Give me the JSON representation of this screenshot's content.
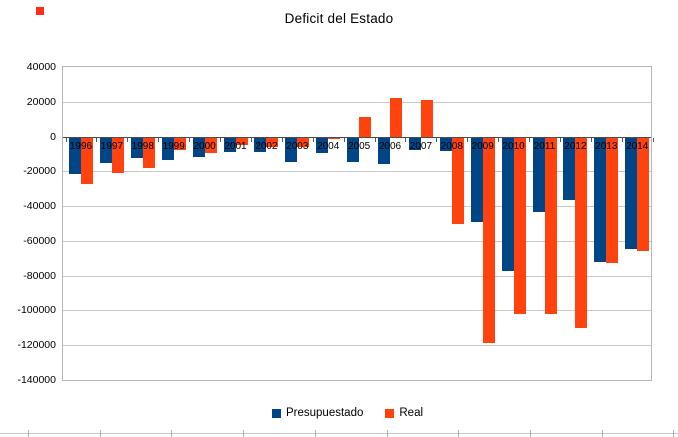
{
  "marker": {
    "color": "#ff2d16"
  },
  "chart_data": {
    "type": "bar",
    "title": "Deficit del Estado",
    "categories": [
      "1996",
      "1997",
      "1998",
      "1999",
      "2000",
      "2001",
      "2002",
      "2003",
      "2004",
      "2005",
      "2006",
      "2007",
      "2008",
      "2009",
      "2010",
      "2011",
      "2012",
      "2013",
      "2014"
    ],
    "series": [
      {
        "name": "Presupuestado",
        "color": "#004586",
        "values": [
          -21000,
          -14500,
          -12000,
          -13000,
          -11000,
          -8500,
          -8500,
          -14000,
          -9000,
          -14000,
          -15000,
          -7000,
          -8000,
          -48500,
          -76500,
          -43000,
          -36000,
          -71500,
          -64000
        ]
      },
      {
        "name": "Real",
        "color": "#FF420E",
        "values": [
          -26500,
          -20500,
          -17500,
          -7000,
          -9000,
          -4500,
          -5500,
          -5500,
          -1000,
          11000,
          22000,
          21000,
          -49500,
          -118000,
          -101500,
          -101500,
          -109500,
          -72000,
          -65000
        ]
      }
    ],
    "ylim": [
      -140000,
      40000
    ],
    "ytick_step": 20000,
    "xlabel": "",
    "ylabel": "",
    "grid": true,
    "legend_position": "bottom"
  }
}
